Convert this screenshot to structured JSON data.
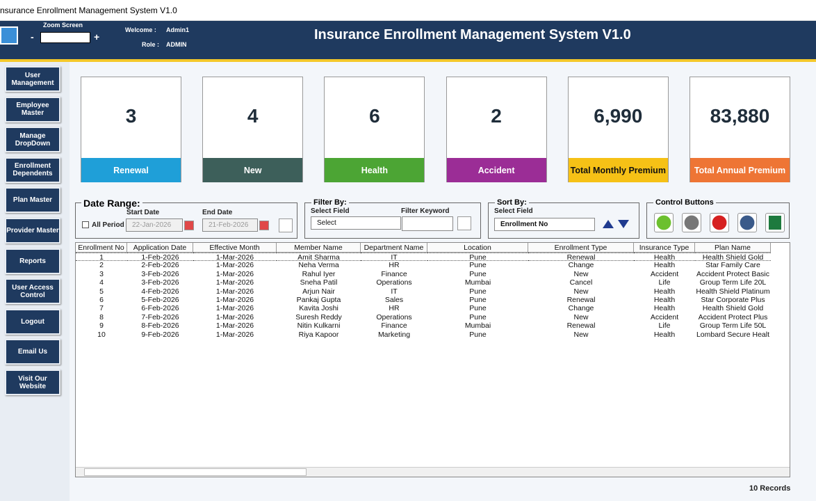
{
  "window_title": "nsurance Enrollment Management System V1.0",
  "header": {
    "zoom_label": "Zoom Screen",
    "zoom_minus": "-",
    "zoom_plus": "+",
    "welcome_label": "Welcome :",
    "welcome_value": "Admin1",
    "role_label": "Role :",
    "role_value": "ADMIN",
    "title": "Insurance Enrollment Management System V1.0"
  },
  "sidebar": [
    "User Management",
    "Employee Master",
    "Manage DropDown",
    "Enrollment Dependents",
    "Plan Master",
    "Provider Master",
    "Reports",
    "User Access Control",
    "Logout",
    "Email Us",
    "Visit Our Website"
  ],
  "kpis": [
    {
      "value": "3",
      "label": "Renewal",
      "color": "#1f9fd8"
    },
    {
      "value": "4",
      "label": "New",
      "color": "#3d5f5a"
    },
    {
      "value": "6",
      "label": "Health",
      "color": "#4ca534"
    },
    {
      "value": "2",
      "label": "Accident",
      "color": "#9b2d96"
    },
    {
      "value": "6,990",
      "label": "Total Monthly Premium",
      "color": "#f6c116"
    },
    {
      "value": "83,880",
      "label": "Total Annual Premium",
      "color": "#ee7535"
    }
  ],
  "date_range": {
    "title": "Date Range:",
    "all_period": "All Period",
    "start_label": "Start Date",
    "start_value": "22-Jan-2026",
    "end_label": "End Date",
    "end_value": "21-Feb-2026"
  },
  "filter": {
    "title": "Filter By:",
    "field_label": "Select Field",
    "field_value": "Select",
    "keyword_label": "Filter Keyword"
  },
  "sort": {
    "title": "Sort By:",
    "field_label": "Select Field",
    "field_value": "Enrollment No"
  },
  "controls": {
    "title": "Control Buttons"
  },
  "table": {
    "columns": [
      "Enrollment No",
      "Application Date",
      "Effective Month",
      "Member Name",
      "Department Name",
      "Location",
      "Enrollment Type",
      "Insurance Type",
      "Plan Name"
    ],
    "rows": [
      [
        "1",
        "1-Feb-2026",
        "1-Mar-2026",
        "Amit Sharma",
        "IT",
        "Pune",
        "Renewal",
        "Health",
        "Health Shield Gold"
      ],
      [
        "2",
        "2-Feb-2026",
        "1-Mar-2026",
        "Neha Verma",
        "HR",
        "Pune",
        "Change",
        "Health",
        "Star Family Care"
      ],
      [
        "3",
        "3-Feb-2026",
        "1-Mar-2026",
        "Rahul Iyer",
        "Finance",
        "Pune",
        "New",
        "Accident",
        "Accident Protect Basic"
      ],
      [
        "4",
        "3-Feb-2026",
        "1-Mar-2026",
        "Sneha Patil",
        "Operations",
        "Mumbai",
        "Cancel",
        "Life",
        "Group Term Life 20L"
      ],
      [
        "5",
        "4-Feb-2026",
        "1-Mar-2026",
        "Arjun Nair",
        "IT",
        "Pune",
        "New",
        "Health",
        "Health Shield Platinum"
      ],
      [
        "6",
        "5-Feb-2026",
        "1-Mar-2026",
        "Pankaj Gupta",
        "Sales",
        "Pune",
        "Renewal",
        "Health",
        "Star Corporate Plus"
      ],
      [
        "7",
        "6-Feb-2026",
        "1-Mar-2026",
        "Kavita Joshi",
        "HR",
        "Pune",
        "Change",
        "Health",
        "Health Shield Gold"
      ],
      [
        "8",
        "7-Feb-2026",
        "1-Mar-2026",
        "Suresh Reddy",
        "Operations",
        "Pune",
        "New",
        "Accident",
        "Accident Protect Plus"
      ],
      [
        "9",
        "8-Feb-2026",
        "1-Mar-2026",
        "Nitin Kulkarni",
        "Finance",
        "Mumbai",
        "Renewal",
        "Life",
        "Group Term Life 50L"
      ],
      [
        "10",
        "9-Feb-2026",
        "1-Mar-2026",
        "Riya Kapoor",
        "Marketing",
        "Pune",
        "New",
        "Health",
        "Lombard Secure Healt"
      ]
    ]
  },
  "footer": {
    "records": "10 Records"
  }
}
